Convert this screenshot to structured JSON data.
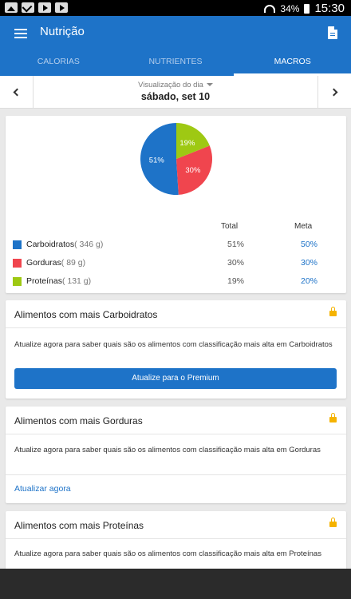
{
  "status_bar": {
    "battery": "34%",
    "time": "15:30",
    "icons": [
      "image-icon",
      "mail-icon",
      "youtube-icon",
      "youtube-icon"
    ]
  },
  "app_bar": {
    "title": "Nutrição",
    "menu_icon": "hamburger-icon",
    "action_icon": "document-icon"
  },
  "tabs": [
    {
      "label": "CALORIAS",
      "active": false
    },
    {
      "label": "NUTRIENTES",
      "active": false
    },
    {
      "label": "MACROS",
      "active": true
    }
  ],
  "date_nav": {
    "view_label": "Visualização do dia",
    "date": "sábado, set 10"
  },
  "macros": {
    "header_total": "Total",
    "header_goal": "Meta",
    "pie_labels": [
      "51%",
      "30%",
      "19%"
    ],
    "items": [
      {
        "name": "Carboidratos",
        "grams": "( 346 g)",
        "total": "51%",
        "goal": "50%",
        "color": "#1e73c8",
        "fraction": 0.51
      },
      {
        "name": "Gorduras",
        "grams": "( 89 g)",
        "total": "30%",
        "goal": "30%",
        "color": "#f0454e",
        "fraction": 0.3
      },
      {
        "name": "Proteínas",
        "grams": "( 131 g)",
        "total": "19%",
        "goal": "20%",
        "color": "#9ec913",
        "fraction": 0.19
      }
    ]
  },
  "food_cards": [
    {
      "title": "Alimentos com mais Carboidratos",
      "body": "Atualize agora para saber quais são os alimentos com classificação mais alta em Carboidratos",
      "action": "Atualize para o Premium"
    },
    {
      "title": "Alimentos com mais Gorduras",
      "body": "Atualize agora para saber quais são os alimentos com classificação mais alta em Gorduras",
      "action": "Atualizar agora"
    },
    {
      "title": "Alimentos com mais Proteínas",
      "body": "Atualize agora para saber quais são os alimentos com classificação mais alta em Proteínas"
    }
  ]
}
